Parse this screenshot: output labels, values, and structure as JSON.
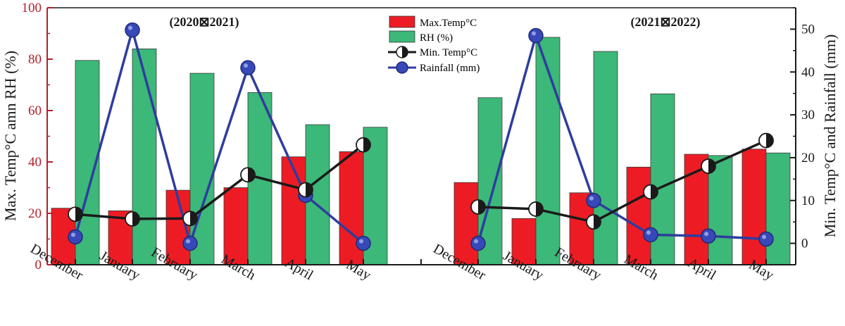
{
  "chart_data": {
    "type": "bar",
    "panels": [
      {
        "title": "(2020⊠2021)",
        "categories": [
          "December",
          "January",
          "February",
          "March",
          "April",
          "May"
        ]
      },
      {
        "title": "(2021⊠2022)",
        "categories": [
          "December",
          "January",
          "February",
          "March",
          "April",
          "May"
        ]
      }
    ],
    "left_axis": {
      "label": "Max. Temp°C amn RH (%)",
      "range": [
        0,
        100
      ],
      "ticks": [
        "0",
        "20",
        "40",
        "60",
        "80",
        "100"
      ],
      "color": "#b3202a"
    },
    "right_axis": {
      "label": "Min. Temp°C and Rainfall (mm)",
      "range": [
        -5,
        55
      ],
      "ticks": [
        "0",
        "10",
        "20",
        "30",
        "40",
        "50"
      ]
    },
    "series": [
      {
        "name": "Max.Temp°C",
        "kind": "bar",
        "axis": "left",
        "color": "#ed1c24",
        "values": [
          22,
          21,
          29,
          30,
          42,
          44,
          32,
          18,
          28,
          38,
          43,
          45
        ]
      },
      {
        "name": "RH (%)",
        "kind": "bar",
        "axis": "left",
        "color": "#3cb878",
        "values": [
          79.5,
          84,
          74.5,
          67,
          54.5,
          53.5,
          65,
          88.5,
          83,
          66.5,
          42.5,
          43.5
        ]
      },
      {
        "name": "Min. Temp°C",
        "kind": "line",
        "axis": "right",
        "color": "#1a1a1a",
        "values": [
          6.8,
          5.7,
          5.8,
          16,
          12.5,
          23,
          8.5,
          8,
          5,
          12,
          18,
          24
        ]
      },
      {
        "name": "Rainfall (mm)",
        "kind": "line",
        "axis": "right",
        "color": "#2e3d9e",
        "values": [
          1.5,
          49.8,
          0,
          41,
          11.2,
          0,
          0,
          48.5,
          10,
          2,
          1.7,
          1
        ]
      }
    ]
  }
}
